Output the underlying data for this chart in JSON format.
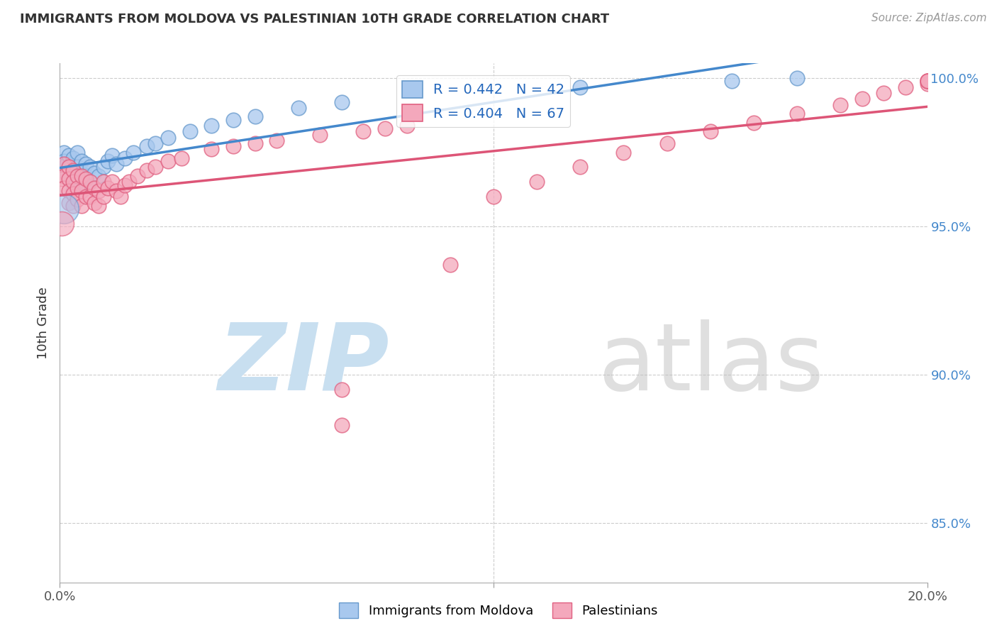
{
  "title": "IMMIGRANTS FROM MOLDOVA VS PALESTINIAN 10TH GRADE CORRELATION CHART",
  "source": "Source: ZipAtlas.com",
  "ylabel": "10th Grade",
  "legend_blue_label": "Immigrants from Moldova",
  "legend_pink_label": "Palestinians",
  "R_blue": 0.442,
  "N_blue": 42,
  "R_pink": 0.404,
  "N_pink": 67,
  "color_blue": "#A8C8EE",
  "color_pink": "#F4A8BC",
  "edge_color_blue": "#6699CC",
  "edge_color_pink": "#E06080",
  "line_color_blue": "#4488CC",
  "line_color_pink": "#DD5577",
  "watermark_zip_color": "#C8DFF0",
  "watermark_atlas_color": "#C0C0C0",
  "xlim": [
    0.0,
    0.2
  ],
  "ylim": [
    0.83,
    1.005
  ],
  "right_yticks": [
    0.85,
    0.9,
    0.95,
    1.0
  ],
  "right_ytick_labels": [
    "85.0%",
    "90.0%",
    "95.0%",
    "100.0%"
  ],
  "blue_x": [
    0.0005,
    0.001,
    0.001,
    0.0015,
    0.002,
    0.002,
    0.002,
    0.003,
    0.003,
    0.003,
    0.003,
    0.004,
    0.004,
    0.004,
    0.004,
    0.005,
    0.005,
    0.005,
    0.006,
    0.006,
    0.007,
    0.007,
    0.008,
    0.009,
    0.01,
    0.011,
    0.012,
    0.013,
    0.015,
    0.017,
    0.02,
    0.022,
    0.025,
    0.03,
    0.035,
    0.04,
    0.045,
    0.055,
    0.065,
    0.12,
    0.155,
    0.17
  ],
  "blue_y": [
    0.969,
    0.975,
    0.972,
    0.971,
    0.974,
    0.97,
    0.966,
    0.973,
    0.969,
    0.966,
    0.962,
    0.975,
    0.97,
    0.967,
    0.963,
    0.972,
    0.968,
    0.964,
    0.971,
    0.967,
    0.97,
    0.965,
    0.968,
    0.967,
    0.97,
    0.972,
    0.974,
    0.971,
    0.973,
    0.975,
    0.977,
    0.978,
    0.98,
    0.982,
    0.984,
    0.986,
    0.987,
    0.99,
    0.992,
    0.997,
    0.999,
    1.0
  ],
  "blue_large_x": [
    0.001
  ],
  "blue_large_y": [
    0.956
  ],
  "pink_x": [
    0.0005,
    0.001,
    0.001,
    0.001,
    0.002,
    0.002,
    0.002,
    0.002,
    0.003,
    0.003,
    0.003,
    0.003,
    0.004,
    0.004,
    0.004,
    0.005,
    0.005,
    0.005,
    0.006,
    0.006,
    0.007,
    0.007,
    0.008,
    0.008,
    0.009,
    0.009,
    0.01,
    0.01,
    0.011,
    0.012,
    0.013,
    0.014,
    0.015,
    0.016,
    0.018,
    0.02,
    0.022,
    0.025,
    0.028,
    0.035,
    0.04,
    0.045,
    0.05,
    0.06,
    0.065,
    0.065,
    0.07,
    0.075,
    0.08,
    0.09,
    0.1,
    0.11,
    0.12,
    0.13,
    0.14,
    0.15,
    0.16,
    0.17,
    0.18,
    0.185,
    0.19,
    0.195,
    0.2,
    0.2,
    0.2,
    0.2,
    0.2
  ],
  "pink_y": [
    0.966,
    0.971,
    0.967,
    0.963,
    0.97,
    0.966,
    0.962,
    0.958,
    0.969,
    0.965,
    0.961,
    0.957,
    0.967,
    0.963,
    0.959,
    0.967,
    0.962,
    0.957,
    0.966,
    0.96,
    0.965,
    0.96,
    0.963,
    0.958,
    0.962,
    0.957,
    0.965,
    0.96,
    0.963,
    0.965,
    0.962,
    0.96,
    0.964,
    0.965,
    0.967,
    0.969,
    0.97,
    0.972,
    0.973,
    0.976,
    0.977,
    0.978,
    0.979,
    0.981,
    0.895,
    0.883,
    0.982,
    0.983,
    0.984,
    0.937,
    0.96,
    0.965,
    0.97,
    0.975,
    0.978,
    0.982,
    0.985,
    0.988,
    0.991,
    0.993,
    0.995,
    0.997,
    0.998,
    0.999,
    0.999,
    0.999,
    0.999
  ],
  "pink_large_x": [
    0.0005
  ],
  "pink_large_y": [
    0.951
  ]
}
